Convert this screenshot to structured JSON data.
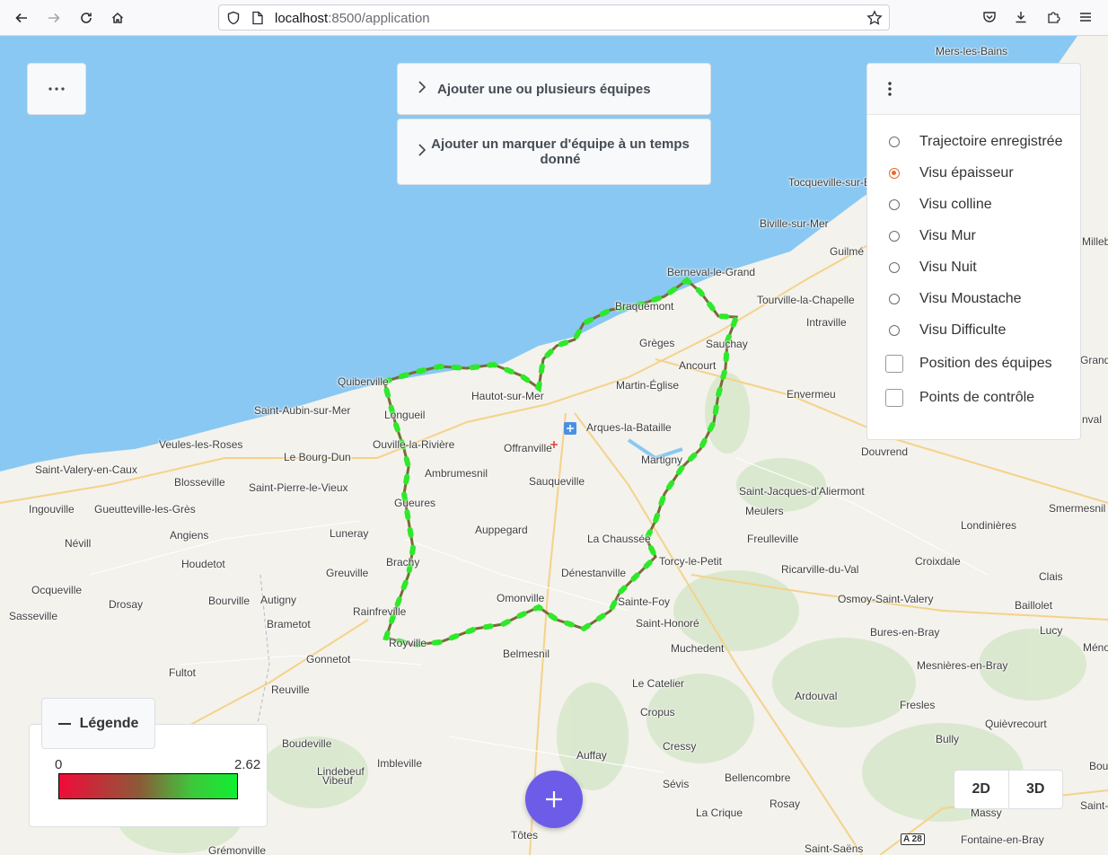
{
  "browser": {
    "url_host": "localhost",
    "url_path": ":8500/application"
  },
  "toolbar": {
    "add_teams_label": "Ajouter une ou plusieurs équipes",
    "add_marker_label": "Ajouter un marquer d'équipe à un temps donné"
  },
  "layers": {
    "radios": [
      {
        "label": "Trajectoire enregistrée",
        "selected": false
      },
      {
        "label": "Visu épaisseur",
        "selected": true
      },
      {
        "label": "Visu colline",
        "selected": false
      },
      {
        "label": "Visu Mur",
        "selected": false
      },
      {
        "label": "Visu Nuit",
        "selected": false
      },
      {
        "label": "Visu Moustache",
        "selected": false
      },
      {
        "label": "Visu Difficulte",
        "selected": false
      }
    ],
    "checkboxes": [
      {
        "label": "Position des équipes",
        "checked": false
      },
      {
        "label": "Points de contrôle",
        "checked": false
      }
    ]
  },
  "legend": {
    "title": "Légende",
    "min": "0",
    "max": "2.62",
    "color_low": "#f20a3a",
    "color_high": "#0ff030"
  },
  "view": {
    "btn_2d": "2D",
    "btn_3d": "3D"
  },
  "fab": {
    "icon": "plus-icon",
    "color": "#6c5ce7"
  },
  "map": {
    "road_badge": "A 28",
    "places": [
      {
        "name": "Mers-les-Bains"
      },
      {
        "name": "Tocqueville-sur-E"
      },
      {
        "name": "Biville-sur-Mer"
      },
      {
        "name": "Guilmé"
      },
      {
        "name": "Berneval-le-Grand"
      },
      {
        "name": "Tourville-la-Chapelle"
      },
      {
        "name": "Braquemont"
      },
      {
        "name": "Intraville"
      },
      {
        "name": "Grèges"
      },
      {
        "name": "Sauchay"
      },
      {
        "name": "Ancourt"
      },
      {
        "name": "Quiberville"
      },
      {
        "name": "Martin-Église"
      },
      {
        "name": "Envermeu"
      },
      {
        "name": "Hautot-sur-Mer"
      },
      {
        "name": "Saint-Aubin-sur-Mer"
      },
      {
        "name": "Longueil"
      },
      {
        "name": "Arques-la-Bataille"
      },
      {
        "name": "Veules-les-Roses"
      },
      {
        "name": "Ouville-la-Rivière"
      },
      {
        "name": "Offranville"
      },
      {
        "name": "Le Bourg-Dun"
      },
      {
        "name": "Douvrend"
      },
      {
        "name": "Martigny"
      },
      {
        "name": "Saint-Valery-en-Caux"
      },
      {
        "name": "Ambrumesnil"
      },
      {
        "name": "Blosseville"
      },
      {
        "name": "Saint-Pierre-le-Vieux"
      },
      {
        "name": "Sauqueville"
      },
      {
        "name": "Saint-Jacques-d'Aliermont"
      },
      {
        "name": "Ingouville"
      },
      {
        "name": "Gueutteville-les-Grès"
      },
      {
        "name": "Gueures"
      },
      {
        "name": "Meulers"
      },
      {
        "name": "Londinières"
      },
      {
        "name": "Smermesnil"
      },
      {
        "name": "Angiens"
      },
      {
        "name": "Luneray"
      },
      {
        "name": "Auppegard"
      },
      {
        "name": "Névill"
      },
      {
        "name": "La Chaussée"
      },
      {
        "name": "Freulleville"
      },
      {
        "name": "Houdetot"
      },
      {
        "name": "Greuville"
      },
      {
        "name": "Brachy"
      },
      {
        "name": "Dénestanville"
      },
      {
        "name": "Torcy-le-Petit"
      },
      {
        "name": "Ricarville-du-Val"
      },
      {
        "name": "Croixdale"
      },
      {
        "name": "Clais"
      },
      {
        "name": "Ocqueville"
      },
      {
        "name": "Bourville"
      },
      {
        "name": "Autigny"
      },
      {
        "name": "Omonville"
      },
      {
        "name": "Sainte-Foy"
      },
      {
        "name": "Osmoy-Saint-Valery"
      },
      {
        "name": "Drosay"
      },
      {
        "name": "Baillolet"
      },
      {
        "name": "Sasseville"
      },
      {
        "name": "Rainfreville"
      },
      {
        "name": "Brametot"
      },
      {
        "name": "Saint-Honoré"
      },
      {
        "name": "Bures-en-Bray"
      },
      {
        "name": "Lucy"
      },
      {
        "name": "Royville"
      },
      {
        "name": "Muchedent"
      },
      {
        "name": "Belmesnil"
      },
      {
        "name": "Gonnetot"
      },
      {
        "name": "Mesnières-en-Bray"
      },
      {
        "name": "Fultot"
      },
      {
        "name": "Le Catelier"
      },
      {
        "name": "Reuville"
      },
      {
        "name": "Ardouval"
      },
      {
        "name": "Fresles"
      },
      {
        "name": "Cropus"
      },
      {
        "name": "Quièvrecourt"
      },
      {
        "name": "Boudeville"
      },
      {
        "name": "Cressy"
      },
      {
        "name": "Bully"
      },
      {
        "name": "Imbleville"
      },
      {
        "name": "Auffay"
      },
      {
        "name": "Lindebeuf"
      },
      {
        "name": "Bellencombre"
      },
      {
        "name": "Sévis"
      },
      {
        "name": "Vibeuf"
      },
      {
        "name": "Rosay"
      },
      {
        "name": "La Crique"
      },
      {
        "name": "Massy"
      },
      {
        "name": "Tôtes"
      },
      {
        "name": "Fontaine-en-Bray"
      },
      {
        "name": "Grémonville"
      },
      {
        "name": "Saint-Saëns"
      },
      {
        "name": "Bou"
      },
      {
        "name": "Saint-"
      },
      {
        "name": "Méno"
      },
      {
        "name": "Millebo"
      },
      {
        "name": "Grand"
      },
      {
        "name": "nval"
      }
    ]
  }
}
